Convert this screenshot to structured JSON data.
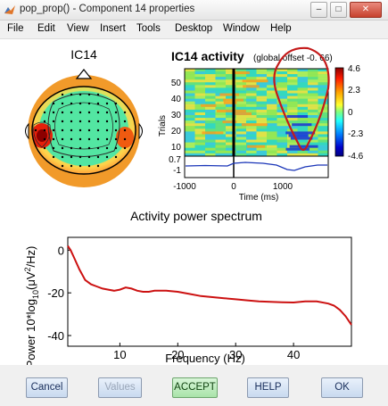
{
  "window": {
    "title": "pop_prop() - Component 14 properties",
    "controls": {
      "minimize": "–",
      "maximize": "□",
      "close": "✕"
    }
  },
  "menu": [
    "File",
    "Edit",
    "View",
    "Insert",
    "Tools",
    "Desktop",
    "Window",
    "Help"
  ],
  "topo": {
    "title": "IC14"
  },
  "erp_image": {
    "title": "IC14 activity",
    "subtitle": "(global offset -0. 66)",
    "ylabel": "Trials",
    "yticks": [
      "50",
      "40",
      "30",
      "20",
      "10"
    ],
    "trace_ticks": [
      "0.7",
      "-1"
    ],
    "xlabel": "Time (ms)",
    "xticks": [
      "-1000",
      "0",
      "1000"
    ],
    "colorbar": {
      "ticks": [
        "4.6",
        "2.3",
        "0",
        "-2.3",
        "-4.6"
      ],
      "min": -4.6,
      "max": 4.6
    }
  },
  "chart_data": {
    "type": "line",
    "title": "Activity power spectrum",
    "xlabel": "Frequency (Hz)",
    "ylabel_parts": [
      "Power 10*log",
      "10",
      "(μV",
      "2",
      "/Hz)"
    ],
    "xticks": [
      "10",
      "20",
      "30",
      "40"
    ],
    "yticks": [
      "0",
      "-20",
      "-40"
    ],
    "xlim": [
      1,
      50
    ],
    "ylim": [
      -45,
      6
    ],
    "series": [
      {
        "color": "#cc1111",
        "x": [
          1,
          1.5,
          2,
          3,
          4,
          5,
          6,
          7,
          8,
          9,
          10,
          11,
          12,
          13,
          14,
          15,
          16,
          18,
          20,
          22,
          24,
          26,
          28,
          30,
          32,
          34,
          36,
          38,
          40,
          42,
          44,
          46,
          47,
          48,
          49,
          50
        ],
        "y": [
          2,
          0,
          -3,
          -9,
          -14,
          -16,
          -17,
          -18,
          -18.5,
          -19,
          -18.5,
          -17.5,
          -18,
          -19,
          -19.5,
          -19.5,
          -19,
          -19,
          -19.5,
          -20.5,
          -21.5,
          -22,
          -22.5,
          -23,
          -23.5,
          -24,
          -24.2,
          -24.4,
          -24.5,
          -24,
          -24,
          -25,
          -26,
          -28,
          -31,
          -35
        ]
      }
    ]
  },
  "buttons": [
    {
      "label": "Cancel",
      "enabled": true
    },
    {
      "label": "Values",
      "enabled": false
    },
    {
      "label": "ACCEPT",
      "enabled": true
    },
    {
      "label": "HELP",
      "enabled": true
    },
    {
      "label": "OK",
      "enabled": true
    }
  ],
  "colors": {
    "line": "#cc1111",
    "annotation": "#c41a1a",
    "trace": "#1a35b8"
  }
}
